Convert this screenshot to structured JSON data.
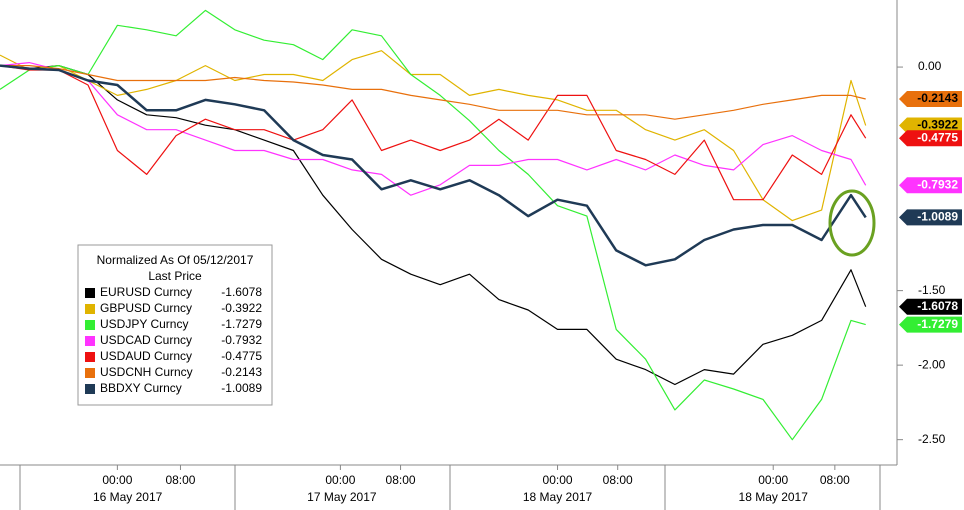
{
  "chart_data": {
    "type": "line",
    "title": "Normalized As Of 05/12/2017",
    "subtitle": "Last Price",
    "x": [
      0,
      2,
      4,
      6,
      8,
      10,
      12,
      14,
      16,
      18,
      20,
      22,
      24,
      26,
      28,
      30,
      32,
      34,
      36,
      38,
      40,
      42,
      44,
      46,
      48,
      50,
      52,
      54,
      56,
      58,
      59
    ],
    "xlim": [
      0,
      61
    ],
    "xticks": [
      {
        "value": 8,
        "label": "00:00"
      },
      {
        "value": 12.3,
        "label": "08:00"
      },
      {
        "value": 23.2,
        "label": "00:00"
      },
      {
        "value": 27.3,
        "label": "08:00"
      },
      {
        "value": 38,
        "label": "00:00"
      },
      {
        "value": 42.1,
        "label": "08:00"
      },
      {
        "value": 52.7,
        "label": "00:00"
      },
      {
        "value": 56.9,
        "label": "08:00"
      }
    ],
    "x_group_labels": [
      {
        "value": 8.7,
        "label": "16 May 2017"
      },
      {
        "value": 23.3,
        "label": "17 May 2017"
      },
      {
        "value": 38,
        "label": "18 May 2017"
      },
      {
        "value": 52.7,
        "label": "18 May 2017"
      }
    ],
    "ylim": [
      -2.67,
      0.45
    ],
    "yticks": [
      {
        "value": 0,
        "label": "0.00"
      },
      {
        "value": -1.5,
        "label": "-1.50"
      },
      {
        "value": -2,
        "label": "-2.00"
      },
      {
        "value": -2.5,
        "label": "-2.50"
      }
    ],
    "legend": "bottom-left",
    "series": [
      {
        "name": "EURUSD Curncy",
        "color": "#000000",
        "values": [
          0.01,
          -0.01,
          0.01,
          -0.05,
          -0.22,
          -0.32,
          -0.34,
          -0.39,
          -0.42,
          -0.49,
          -0.56,
          -0.86,
          -1.09,
          -1.29,
          -1.39,
          -1.46,
          -1.39,
          -1.56,
          -1.63,
          -1.76,
          -1.76,
          -1.96,
          -2.03,
          -2.13,
          -2.03,
          -2.06,
          -1.86,
          -1.8,
          -1.7,
          -1.36,
          -1.6078
        ]
      },
      {
        "name": "GBPUSD Curncy",
        "color": "#e0b400",
        "values": [
          0.08,
          -0.02,
          0.01,
          -0.09,
          -0.19,
          -0.15,
          -0.09,
          0.01,
          -0.09,
          -0.05,
          -0.05,
          -0.09,
          0.05,
          0.11,
          -0.05,
          -0.05,
          -0.19,
          -0.15,
          -0.19,
          -0.22,
          -0.29,
          -0.29,
          -0.42,
          -0.49,
          -0.42,
          -0.56,
          -0.89,
          -1.03,
          -0.96,
          -0.09,
          -0.3922
        ]
      },
      {
        "name": "USDJPY Curncy",
        "color": "#33ee33",
        "values": [
          -0.15,
          -0.02,
          0.01,
          -0.05,
          0.28,
          0.25,
          0.21,
          0.38,
          0.25,
          0.18,
          0.15,
          0.05,
          0.25,
          0.21,
          -0.05,
          -0.19,
          -0.36,
          -0.56,
          -0.72,
          -0.93,
          -1.0,
          -1.76,
          -1.96,
          -2.3,
          -2.1,
          -2.16,
          -2.23,
          -2.5,
          -2.23,
          -1.7,
          -1.7279
        ]
      },
      {
        "name": "USDCAD Curncy",
        "color": "#ff33ff",
        "values": [
          0.01,
          0.03,
          -0.02,
          -0.09,
          -0.32,
          -0.42,
          -0.42,
          -0.49,
          -0.56,
          -0.56,
          -0.62,
          -0.62,
          -0.69,
          -0.72,
          -0.86,
          -0.79,
          -0.66,
          -0.66,
          -0.62,
          -0.62,
          -0.69,
          -0.62,
          -0.69,
          -0.59,
          -0.66,
          -0.69,
          -0.52,
          -0.46,
          -0.56,
          -0.62,
          -0.7932
        ]
      },
      {
        "name": "USDAUD Curncy",
        "color": "#ee1111",
        "values": [
          0.01,
          -0.02,
          -0.02,
          -0.12,
          -0.56,
          -0.72,
          -0.46,
          -0.35,
          -0.42,
          -0.42,
          -0.49,
          -0.42,
          -0.22,
          -0.56,
          -0.49,
          -0.56,
          -0.49,
          -0.35,
          -0.49,
          -0.19,
          -0.19,
          -0.56,
          -0.62,
          -0.72,
          -0.49,
          -0.89,
          -0.89,
          -0.59,
          -0.72,
          -0.32,
          -0.4775
        ]
      },
      {
        "name": "USDCNH Curncy",
        "color": "#e8700c",
        "values": [
          0.01,
          0.01,
          -0.01,
          -0.05,
          -0.09,
          -0.09,
          -0.09,
          -0.09,
          -0.07,
          -0.09,
          -0.1,
          -0.12,
          -0.15,
          -0.15,
          -0.19,
          -0.22,
          -0.25,
          -0.29,
          -0.29,
          -0.29,
          -0.32,
          -0.32,
          -0.32,
          -0.35,
          -0.32,
          -0.29,
          -0.25,
          -0.22,
          -0.19,
          -0.19,
          -0.2143
        ]
      },
      {
        "name": "BBDXY Curncy",
        "color": "#1f3a56",
        "values": [
          0.01,
          -0.01,
          -0.02,
          -0.09,
          -0.12,
          -0.29,
          -0.29,
          -0.22,
          -0.25,
          -0.29,
          -0.49,
          -0.59,
          -0.62,
          -0.82,
          -0.76,
          -0.82,
          -0.76,
          -0.86,
          -1.0,
          -0.89,
          -0.93,
          -1.23,
          -1.33,
          -1.29,
          -1.16,
          -1.09,
          -1.06,
          -1.06,
          -1.16,
          -0.86,
          -1.0089
        ]
      }
    ]
  }
}
